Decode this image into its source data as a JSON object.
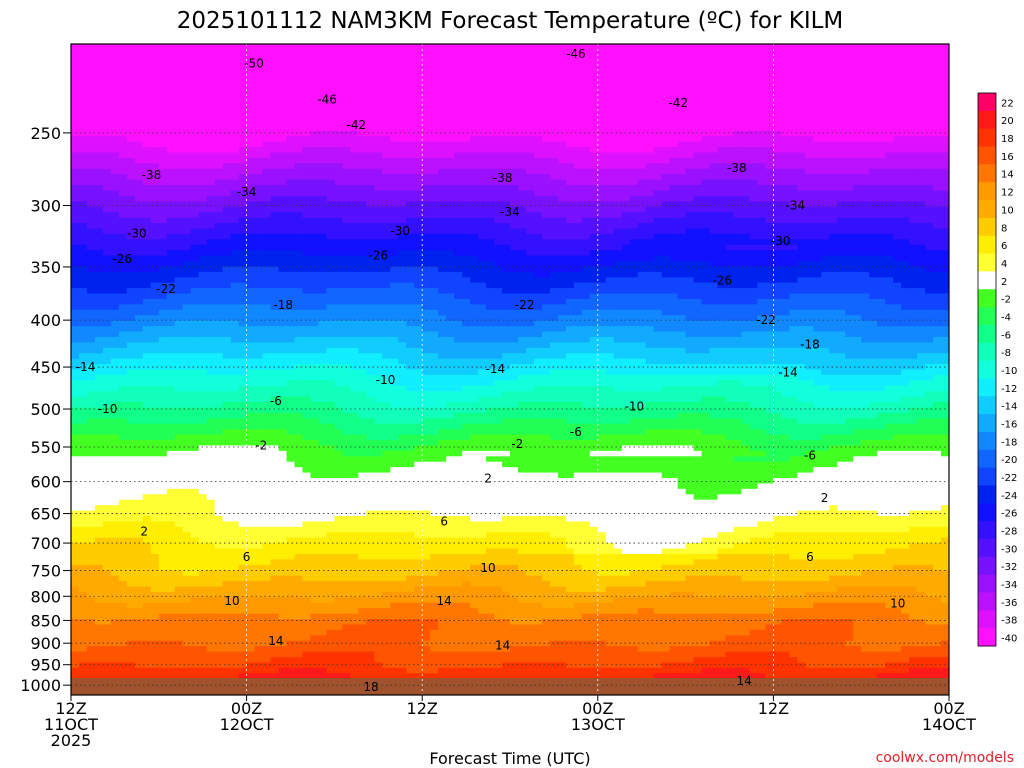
{
  "chart_data": {
    "type": "heatmap",
    "title": "2025101112 NAM3KM Forecast Temperature (ºC) for KILM",
    "xlabel": "Forecast Time (UTC)",
    "ylabel": "",
    "credit": "coolwx.com/models",
    "x_range": [
      "2025-10-11 12Z",
      "2025-10-14 00Z"
    ],
    "y_range_hpa": [
      1025,
      200
    ],
    "y_scale": "log-pressure",
    "x_ticks": [
      {
        "hour": 0,
        "line1": "12Z",
        "line2": "11OCT",
        "line3": "2025"
      },
      {
        "hour": 12,
        "line1": "00Z",
        "line2": "12OCT",
        "line3": ""
      },
      {
        "hour": 24,
        "line1": "12Z",
        "line2": "",
        "line3": ""
      },
      {
        "hour": 36,
        "line1": "00Z",
        "line2": "13OCT",
        "line3": ""
      },
      {
        "hour": 48,
        "line1": "12Z",
        "line2": "",
        "line3": ""
      },
      {
        "hour": 60,
        "line1": "00Z",
        "line2": "14OCT",
        "line3": ""
      }
    ],
    "y_ticks": [
      "250",
      "300",
      "350",
      "400",
      "450",
      "500",
      "550",
      "600",
      "650",
      "700",
      "750",
      "800",
      "850",
      "900",
      "950",
      "1000"
    ],
    "colorbar": {
      "labels": [
        "22",
        "20",
        "18",
        "16",
        "14",
        "12",
        "10",
        "8",
        "6",
        "4",
        "2",
        "-2",
        "-4",
        "-6",
        "-8",
        "-10",
        "-12",
        "-14",
        "-16",
        "-18",
        "-20",
        "-22",
        "-24",
        "-26",
        "-28",
        "-30",
        "-32",
        "-34",
        "-36",
        "-38",
        "-40"
      ],
      "colors": [
        "#ff0066",
        "#ff1a1a",
        "#ff3300",
        "#ff5500",
        "#ff7700",
        "#ff9900",
        "#ffaa00",
        "#ffcc00",
        "#ffee00",
        "#ffff33",
        "#ffffff",
        "#44ff22",
        "#22ff55",
        "#11ff88",
        "#11ffbb",
        "#11ffdd",
        "#11eeff",
        "#11ccff",
        "#11aaff",
        "#1188ff",
        "#1166ff",
        "#1144ff",
        "#0022ee",
        "#1111ff",
        "#3311ff",
        "#5511ff",
        "#7711ff",
        "#9911ff",
        "#bb11ff",
        "#dd11ff",
        "#ff11ff"
      ]
    },
    "temperature_profile": {
      "pressure_hpa": [
        1000,
        950,
        900,
        850,
        800,
        750,
        700,
        650,
        600,
        550,
        500,
        450,
        400,
        350,
        300,
        250,
        200
      ],
      "temp_c": [
        19,
        16,
        14,
        13,
        10,
        7,
        5,
        2,
        0,
        -3,
        -8,
        -13,
        -19,
        -25,
        -32,
        -41,
        -50
      ]
    },
    "contour_labels": [
      {
        "text": "-50",
        "hour": 12.5,
        "p": 210
      },
      {
        "text": "-46",
        "hour": 17.5,
        "p": 230
      },
      {
        "text": "-46",
        "hour": 34.5,
        "p": 205
      },
      {
        "text": "-42",
        "hour": 19.5,
        "p": 245
      },
      {
        "text": "-42",
        "hour": 41.5,
        "p": 232
      },
      {
        "text": "-38",
        "hour": 5.5,
        "p": 278
      },
      {
        "text": "-38",
        "hour": 29.5,
        "p": 280
      },
      {
        "text": "-38",
        "hour": 45.5,
        "p": 273
      },
      {
        "text": "-34",
        "hour": 12,
        "p": 290
      },
      {
        "text": "-34",
        "hour": 30,
        "p": 305
      },
      {
        "text": "-34",
        "hour": 49.5,
        "p": 300
      },
      {
        "text": "-30",
        "hour": 4.5,
        "p": 322
      },
      {
        "text": "-30",
        "hour": 22.5,
        "p": 320
      },
      {
        "text": "-30",
        "hour": 48.5,
        "p": 328
      },
      {
        "text": "-26",
        "hour": 3.5,
        "p": 343
      },
      {
        "text": "-26",
        "hour": 21,
        "p": 340
      },
      {
        "text": "-26",
        "hour": 44.5,
        "p": 362
      },
      {
        "text": "-22",
        "hour": 6.5,
        "p": 370
      },
      {
        "text": "-22",
        "hour": 31,
        "p": 385
      },
      {
        "text": "-22",
        "hour": 47.5,
        "p": 400
      },
      {
        "text": "-18",
        "hour": 14.5,
        "p": 385
      },
      {
        "text": "-18",
        "hour": 50.5,
        "p": 425
      },
      {
        "text": "-14",
        "hour": 1,
        "p": 450
      },
      {
        "text": "-14",
        "hour": 29,
        "p": 452
      },
      {
        "text": "-14",
        "hour": 49,
        "p": 456
      },
      {
        "text": "-10",
        "hour": 2.5,
        "p": 500
      },
      {
        "text": "-10",
        "hour": 21.5,
        "p": 465
      },
      {
        "text": "-10",
        "hour": 38.5,
        "p": 497
      },
      {
        "text": "-6",
        "hour": 14,
        "p": 490
      },
      {
        "text": "-6",
        "hour": 34.5,
        "p": 530
      },
      {
        "text": "-6",
        "hour": 50.5,
        "p": 562
      },
      {
        "text": "-2",
        "hour": 13,
        "p": 548
      },
      {
        "text": "-2",
        "hour": 30.5,
        "p": 546
      },
      {
        "text": "2",
        "hour": 28.5,
        "p": 595
      },
      {
        "text": "2",
        "hour": 51.5,
        "p": 625
      },
      {
        "text": "2",
        "hour": 5,
        "p": 680
      },
      {
        "text": "6",
        "hour": 12,
        "p": 725
      },
      {
        "text": "6",
        "hour": 25.5,
        "p": 663
      },
      {
        "text": "6",
        "hour": 50.5,
        "p": 725
      },
      {
        "text": "10",
        "hour": 11,
        "p": 810
      },
      {
        "text": "10",
        "hour": 28.5,
        "p": 745
      },
      {
        "text": "10",
        "hour": 56.5,
        "p": 815
      },
      {
        "text": "14",
        "hour": 14,
        "p": 895
      },
      {
        "text": "14",
        "hour": 25.5,
        "p": 810
      },
      {
        "text": "14",
        "hour": 29.5,
        "p": 905
      },
      {
        "text": "14",
        "hour": 46,
        "p": 990
      },
      {
        "text": "18",
        "hour": 20.5,
        "p": 1005
      }
    ]
  }
}
